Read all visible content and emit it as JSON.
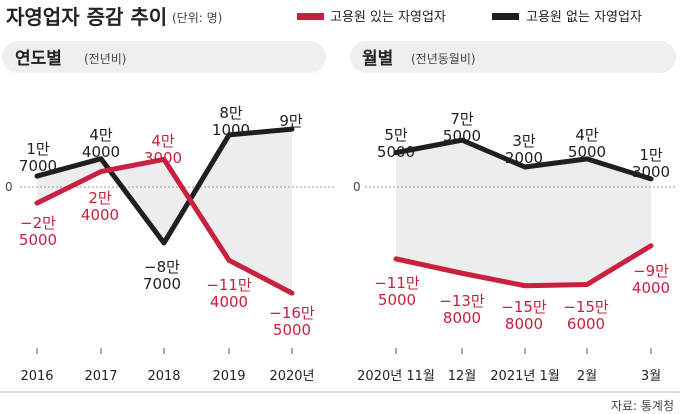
{
  "header": {
    "title": "자영업자 증감 추이",
    "unit": "(단위: 명)",
    "legend": [
      {
        "label": "고용원 있는 자영업자",
        "color": "#c8203e"
      },
      {
        "label": "고용원 없는 자영업자",
        "color": "#1f1f1f"
      }
    ]
  },
  "source": "자료: 통계청",
  "colors": {
    "with_employees": "#c8203e",
    "without_employees": "#1f1f1f",
    "panel_bg": "#efefef",
    "fill": "#ededed"
  },
  "chart_data": [
    {
      "type": "line",
      "panel_title": "연도별",
      "panel_subtitle": "(전년비)",
      "categories": [
        "2016",
        "2017",
        "2018",
        "2019",
        "2020년"
      ],
      "zero_label": "0",
      "series": [
        {
          "name": "고용원 있는 자영업자",
          "values": [
            -25000,
            24000,
            43000,
            -114000,
            -165000
          ],
          "labels": [
            [
              "−2만",
              "5000"
            ],
            [
              "2만",
              "4000"
            ],
            [
              "4만",
              "3000"
            ],
            [
              "−11만",
              "4000"
            ],
            [
              "−16만",
              "5000"
            ]
          ]
        },
        {
          "name": "고용원 없는 자영업자",
          "values": [
            17000,
            44000,
            -87000,
            81000,
            90000
          ],
          "labels": [
            [
              "1만",
              "7000"
            ],
            [
              "4만",
              "4000"
            ],
            [
              "−8만",
              "7000"
            ],
            [
              "8만",
              "1000"
            ],
            [
              "9만"
            ]
          ]
        }
      ]
    },
    {
      "type": "line",
      "panel_title": "월별",
      "panel_subtitle": "(전년동월비)",
      "categories": [
        "2020년 11월",
        "12월",
        "2021년 1월",
        "2월",
        "3월"
      ],
      "zero_label": "0",
      "series": [
        {
          "name": "고용원 있는 자영업자",
          "values": [
            -115000,
            -138000,
            -158000,
            -156000,
            -94000
          ],
          "labels": [
            [
              "−11만",
              "5000"
            ],
            [
              "−13만",
              "8000"
            ],
            [
              "−15만",
              "8000"
            ],
            [
              "−15만",
              "6000"
            ],
            [
              "−9만",
              "4000"
            ]
          ]
        },
        {
          "name": "고용원 없는 자영업자",
          "values": [
            55000,
            75000,
            32000,
            45000,
            13000
          ],
          "labels": [
            [
              "5만",
              "5000"
            ],
            [
              "7만",
              "5000"
            ],
            [
              "3만",
              "2000"
            ],
            [
              "4만",
              "5000"
            ],
            [
              "1만",
              "3000"
            ]
          ]
        }
      ]
    }
  ]
}
